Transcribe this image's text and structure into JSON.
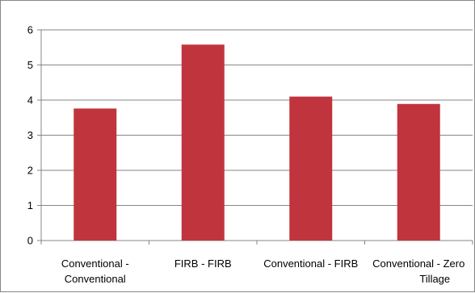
{
  "chart_data": {
    "type": "bar",
    "title": "",
    "xlabel": "",
    "ylabel": "",
    "categories": [
      [
        "Conventional -",
        "Conventional"
      ],
      [
        "FIRB - FIRB"
      ],
      [
        "Conventional - FIRB"
      ],
      [
        "Conventional - Zero",
        "Tillage"
      ]
    ],
    "values": [
      3.76,
      5.58,
      4.1,
      3.89
    ],
    "ylim": [
      0,
      6
    ],
    "yticks": [
      0,
      1,
      2,
      3,
      4,
      5,
      6
    ],
    "grid": true,
    "legend": "none",
    "colors": {
      "bar": "#C0353D",
      "grid": "#868686",
      "axis": "#868686"
    }
  }
}
